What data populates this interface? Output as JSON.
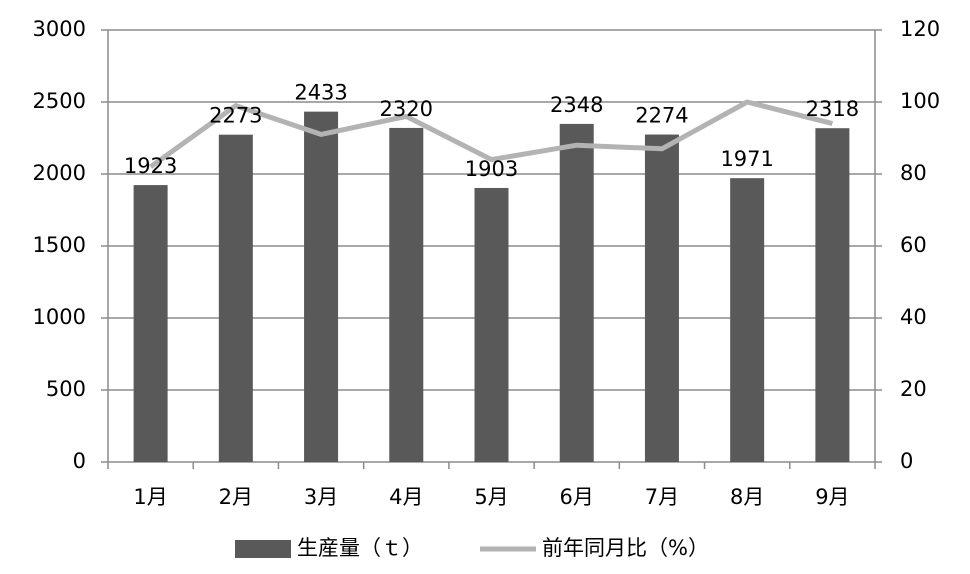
{
  "chart_data": {
    "type": "bar",
    "categories": [
      "1月",
      "2月",
      "3月",
      "4月",
      "5月",
      "6月",
      "7月",
      "8月",
      "9月"
    ],
    "series": [
      {
        "name": "生産量（ｔ）",
        "type": "bar",
        "color": "#595959",
        "values": [
          1923,
          2273,
          2433,
          2320,
          1903,
          2348,
          2274,
          1971,
          2318
        ]
      },
      {
        "name": "前年同月比（%）",
        "type": "line",
        "axis": "y2",
        "color": "#b3b3b3",
        "values": [
          82,
          99,
          91,
          96,
          84,
          88,
          87,
          100,
          94
        ]
      }
    ],
    "ylim": [
      0,
      3000
    ],
    "yticks": [
      0,
      500,
      1000,
      1500,
      2000,
      2500,
      3000
    ],
    "y2lim": [
      0,
      120
    ],
    "y2ticks": [
      0,
      20,
      40,
      60,
      80,
      100,
      120
    ],
    "grid": true,
    "legend": "bottom"
  }
}
